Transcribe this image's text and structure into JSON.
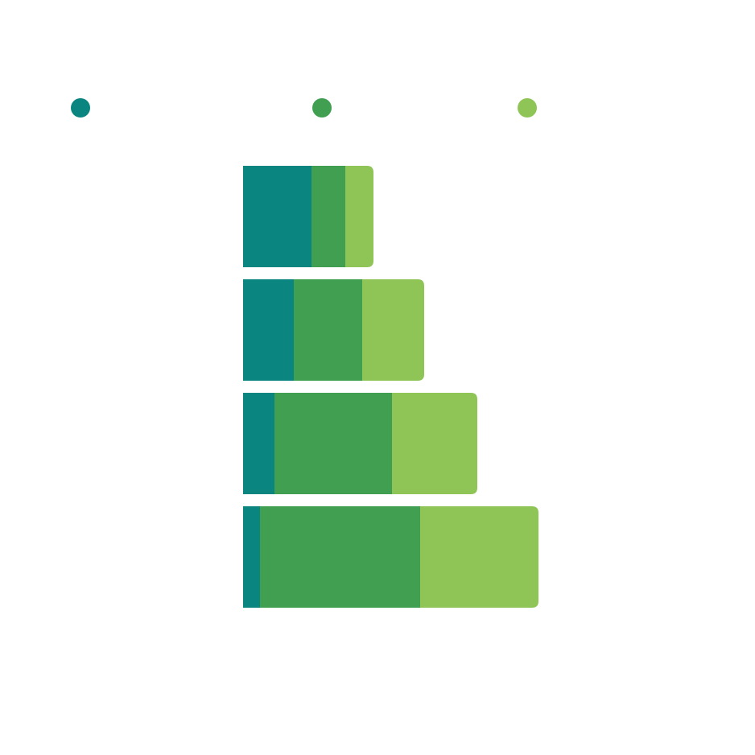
{
  "chart_data": {
    "type": "stacked-bar",
    "orientation": "horizontal",
    "categories": [
      null,
      null,
      null,
      null
    ],
    "series": [
      {
        "color": "#0b8580",
        "values": [
          85,
          63,
          39,
          21
        ]
      },
      {
        "color": "#419f52",
        "values": [
          42,
          85,
          146,
          199
        ]
      },
      {
        "color": "#8fc557",
        "values": [
          35,
          77,
          106,
          147
        ]
      }
    ],
    "legend": "top"
  }
}
